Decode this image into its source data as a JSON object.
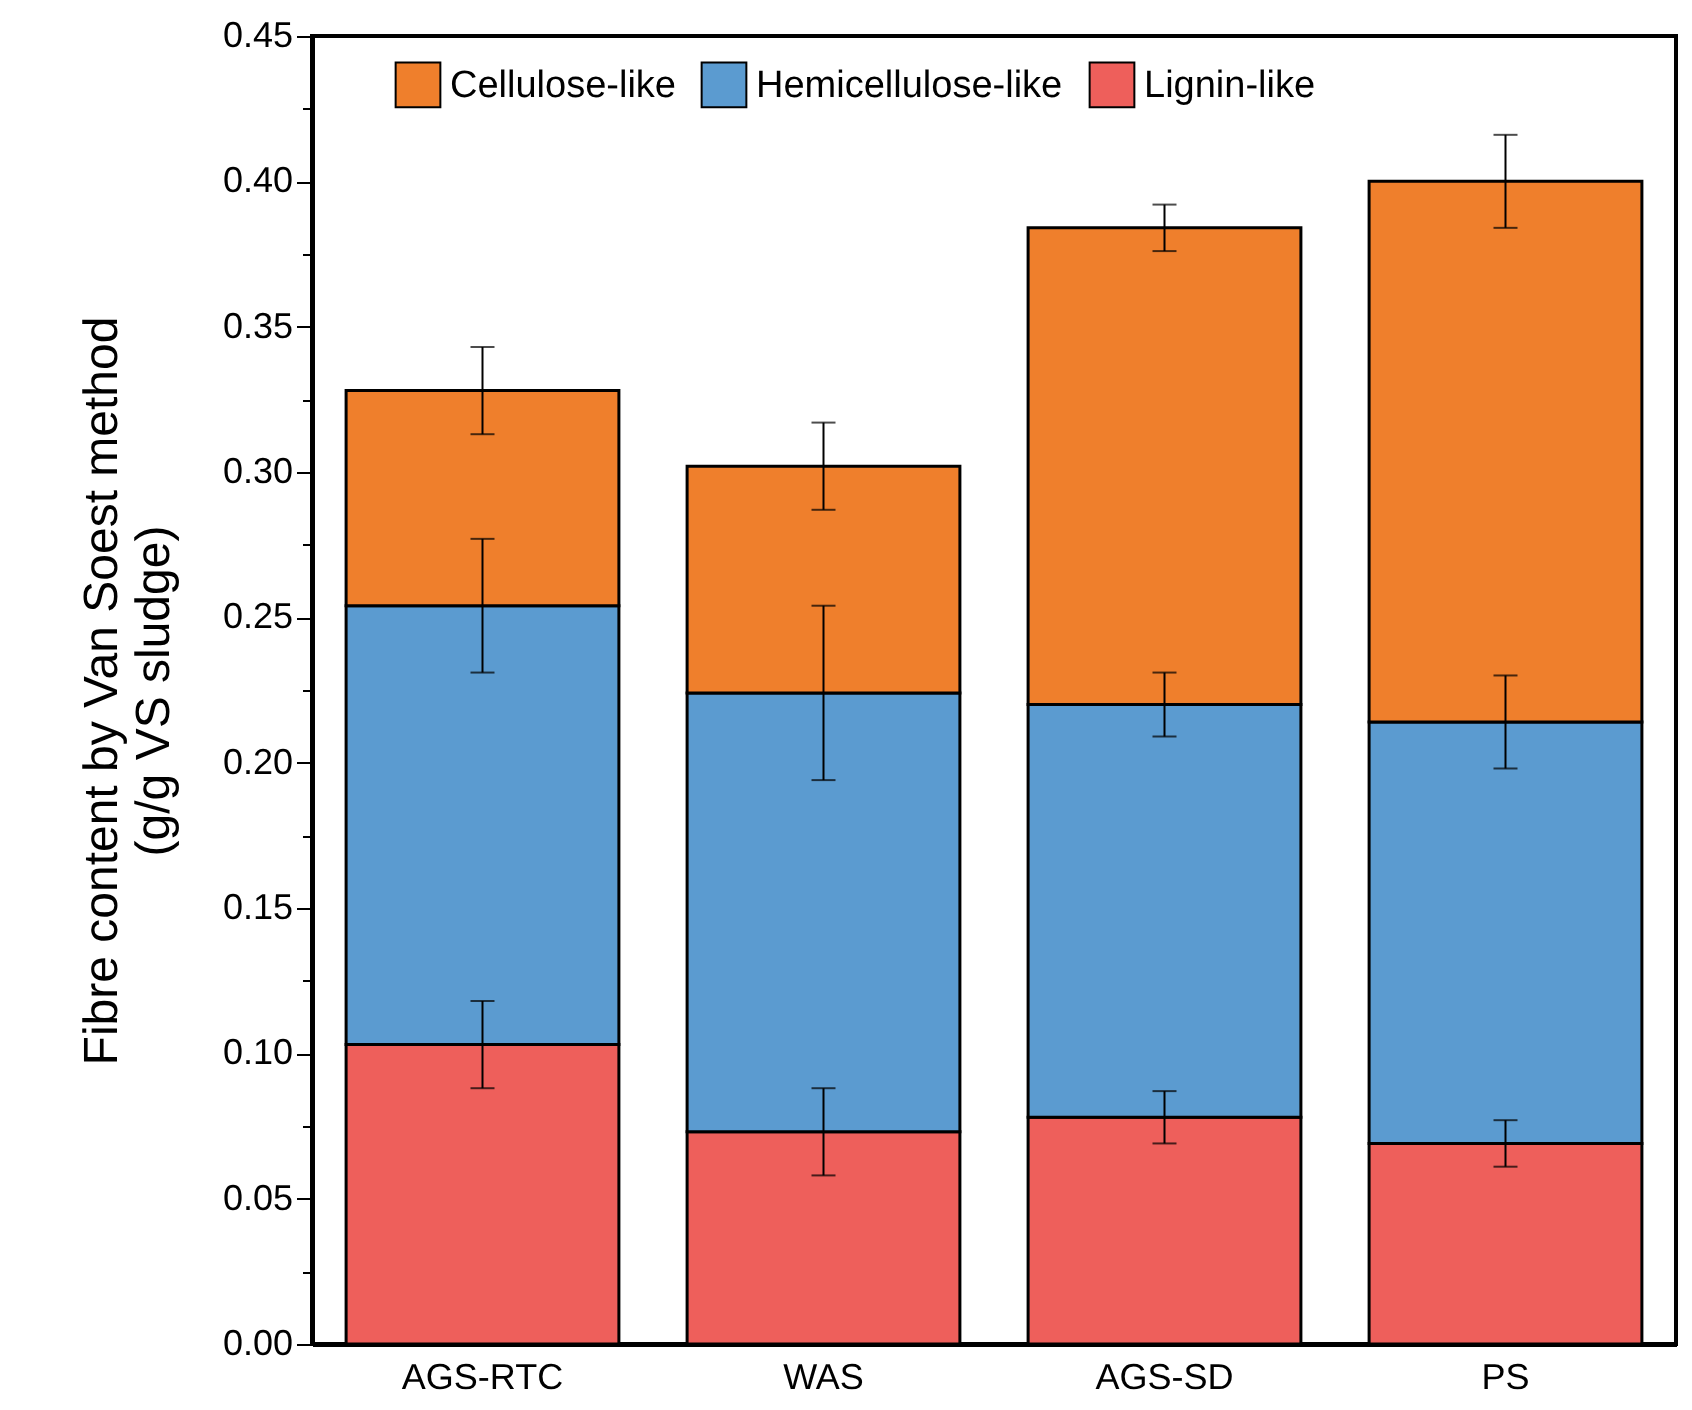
{
  "chart_data": {
    "type": "bar",
    "stacked": true,
    "ylabel": "Fibre content by Van Soest method\n(g/g VS sludge)",
    "categories": [
      "AGS-RTC",
      "WAS",
      "AGS-SD",
      "PS"
    ],
    "series": [
      {
        "name": "Lignin-like",
        "color": "#ee5f5b",
        "values": [
          0.103,
          0.073,
          0.078,
          0.069
        ],
        "errors": [
          0.015,
          0.015,
          0.009,
          0.008
        ]
      },
      {
        "name": "Hemicellulose-like",
        "color": "#5b9bd0",
        "values": [
          0.151,
          0.151,
          0.142,
          0.145
        ],
        "errors": [
          0.023,
          0.03,
          0.011,
          0.016
        ]
      },
      {
        "name": "Cellulose-like",
        "color": "#ef7f2c",
        "values": [
          0.074,
          0.078,
          0.164,
          0.186
        ],
        "errors": [
          0.015,
          0.015,
          0.008,
          0.016
        ]
      }
    ],
    "ylim": [
      0,
      0.45
    ],
    "yticks": [
      {
        "value": 0,
        "label": "0.00"
      },
      {
        "value": 0.025,
        "label": null
      },
      {
        "value": 0.05,
        "label": "0.05"
      },
      {
        "value": 0.075,
        "label": null
      },
      {
        "value": 0.1,
        "label": "0.10"
      },
      {
        "value": 0.125,
        "label": null
      },
      {
        "value": 0.15,
        "label": "0.15"
      },
      {
        "value": 0.175,
        "label": null
      },
      {
        "value": 0.2,
        "label": "0.20"
      },
      {
        "value": 0.225,
        "label": null
      },
      {
        "value": 0.25,
        "label": "0.25"
      },
      {
        "value": 0.275,
        "label": null
      },
      {
        "value": 0.3,
        "label": "0.30"
      },
      {
        "value": 0.325,
        "label": null
      },
      {
        "value": 0.35,
        "label": "0.35"
      },
      {
        "value": 0.375,
        "label": null
      },
      {
        "value": 0.4,
        "label": "0.40"
      },
      {
        "value": 0.425,
        "label": null
      },
      {
        "value": 0.45,
        "label": "0.45"
      }
    ],
    "legend": "top",
    "grid": false
  }
}
